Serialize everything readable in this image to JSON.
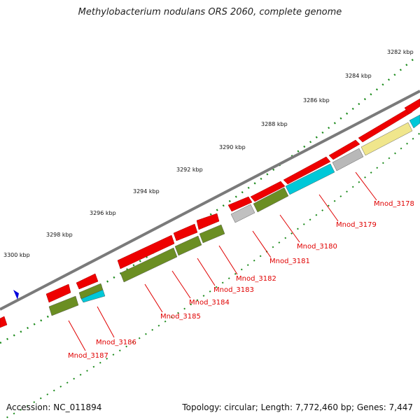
{
  "title": "Methylobacterium nodulans ORS 2060, complete genome",
  "footer": {
    "accession": "Accession: NC_011894",
    "summary": "Topology: circular; Length: 7,772,460 bp; Genes: 7,447"
  },
  "scale_labels": [
    "3282 kbp",
    "3284 kbp",
    "3286 kbp",
    "3288 kbp",
    "3290 kbp",
    "3292 kbp",
    "3294 kbp",
    "3296 kbp",
    "3298 kbp",
    "3300 kbp"
  ],
  "gene_labels": [
    "Mnod_3178",
    "Mnod_3179",
    "Mnod_3180",
    "Mnod_3181",
    "Mnod_3182",
    "Mnod_3183",
    "Mnod_3184",
    "Mnod_3185",
    "Mnod_3186",
    "Mnod_3187"
  ],
  "colors": {
    "backbone": "#7a7a7a",
    "gene_forward": "#ee0000",
    "cog_olive": "#6b8e23",
    "cog_cyan": "#00c8d8",
    "cog_grey": "#b8b8b8",
    "cog_yellow": "#f0e68c",
    "tick": "#1a8a1a",
    "label": "#e00000",
    "marker": "#0000dd"
  },
  "icons": {
    "position_marker": "blue-triangle-icon"
  }
}
